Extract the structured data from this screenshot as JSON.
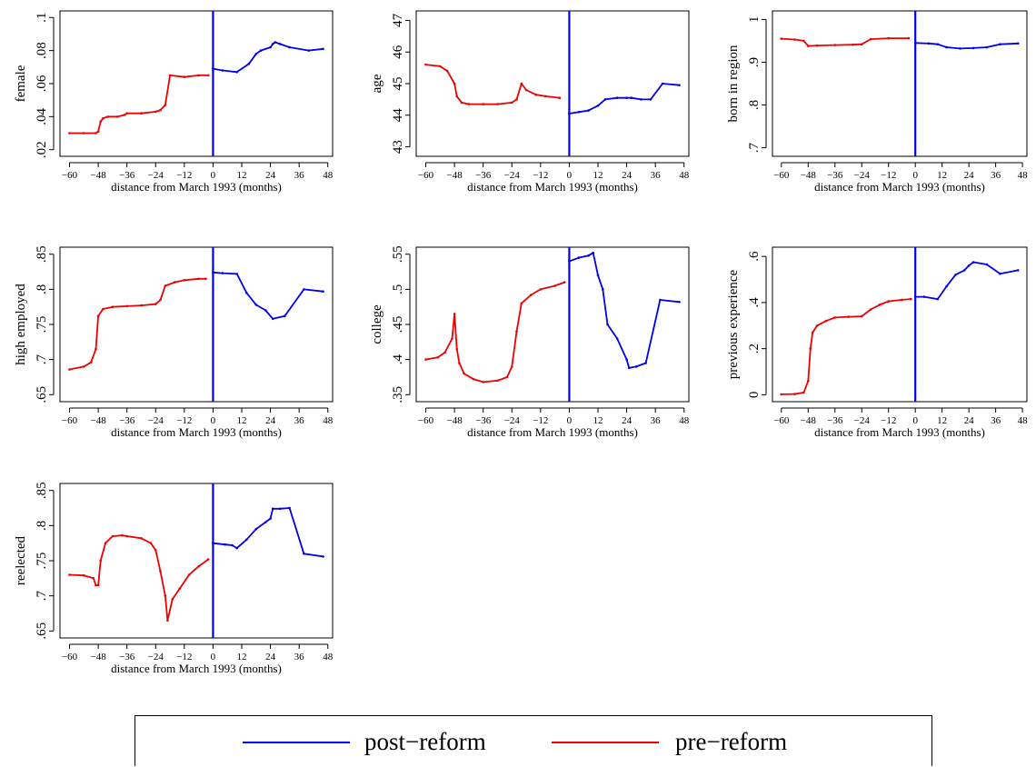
{
  "colors": {
    "post": "#0000EE",
    "pre": "#EE0000",
    "cutoff": "#0000EE",
    "axis": "#000000"
  },
  "legend": {
    "post_label": "post−reform",
    "pre_label": "pre−reform"
  },
  "chart_data": [
    {
      "type": "line",
      "ylabel": "female",
      "xlabel": "distance from March 1993 (months)",
      "xlim": [
        -64,
        50
      ],
      "ylim": [
        0.016,
        0.104
      ],
      "xticks": [
        -60,
        -48,
        -36,
        -24,
        -12,
        0,
        12,
        24,
        36,
        48
      ],
      "yticks": [
        0.02,
        0.04,
        0.06,
        0.08,
        0.1
      ],
      "yticklabels": [
        ".02",
        ".04",
        ".06",
        ".08",
        ".1"
      ],
      "cutoff_x": 0,
      "series": [
        {
          "key": "pre",
          "points": [
            [
              -60,
              0.03
            ],
            [
              -54,
              0.03
            ],
            [
              -49,
              0.03
            ],
            [
              -48,
              0.031
            ],
            [
              -47,
              0.037
            ],
            [
              -46,
              0.039
            ],
            [
              -44,
              0.04
            ],
            [
              -40,
              0.04
            ],
            [
              -37,
              0.041
            ],
            [
              -36,
              0.042
            ],
            [
              -30,
              0.042
            ],
            [
              -24,
              0.043
            ],
            [
              -22,
              0.044
            ],
            [
              -20,
              0.047
            ],
            [
              -18,
              0.065
            ],
            [
              -12,
              0.064
            ],
            [
              -6,
              0.065
            ],
            [
              -2,
              0.065
            ]
          ]
        },
        {
          "key": "post",
          "points": [
            [
              0,
              0.069
            ],
            [
              4,
              0.068
            ],
            [
              10,
              0.067
            ],
            [
              15,
              0.072
            ],
            [
              18,
              0.078
            ],
            [
              20,
              0.08
            ],
            [
              24,
              0.082
            ],
            [
              25,
              0.084
            ],
            [
              26,
              0.085
            ],
            [
              28,
              0.084
            ],
            [
              32,
              0.082
            ],
            [
              40,
              0.08
            ],
            [
              46,
              0.081
            ]
          ]
        }
      ]
    },
    {
      "type": "line",
      "ylabel": "age",
      "xlabel": "distance from March 1993 (months)",
      "xlim": [
        -64,
        50
      ],
      "ylim": [
        42.7,
        47.3
      ],
      "xticks": [
        -60,
        -48,
        -36,
        -24,
        -12,
        0,
        12,
        24,
        36,
        48
      ],
      "yticks": [
        43,
        44,
        45,
        46,
        47
      ],
      "yticklabels": [
        "43",
        "44",
        "45",
        "46",
        "47"
      ],
      "cutoff_x": 0,
      "series": [
        {
          "key": "pre",
          "points": [
            [
              -60,
              45.6
            ],
            [
              -54,
              45.55
            ],
            [
              -51,
              45.4
            ],
            [
              -48,
              45.0
            ],
            [
              -47,
              44.6
            ],
            [
              -45,
              44.4
            ],
            [
              -42,
              44.35
            ],
            [
              -36,
              44.35
            ],
            [
              -30,
              44.35
            ],
            [
              -24,
              44.4
            ],
            [
              -22,
              44.5
            ],
            [
              -20,
              45.0
            ],
            [
              -18,
              44.8
            ],
            [
              -14,
              44.65
            ],
            [
              -10,
              44.6
            ],
            [
              -4,
              44.55
            ]
          ]
        },
        {
          "key": "post",
          "points": [
            [
              0,
              44.05
            ],
            [
              4,
              44.1
            ],
            [
              8,
              44.15
            ],
            [
              12,
              44.3
            ],
            [
              15,
              44.5
            ],
            [
              20,
              44.55
            ],
            [
              24,
              44.55
            ],
            [
              26,
              44.55
            ],
            [
              30,
              44.5
            ],
            [
              34,
              44.5
            ],
            [
              39,
              45.0
            ],
            [
              46,
              44.95
            ]
          ]
        }
      ]
    },
    {
      "type": "line",
      "ylabel": "born in region",
      "xlabel": "distance from March 1993 (months)",
      "xlim": [
        -64,
        50
      ],
      "ylim": [
        0.68,
        1.02
      ],
      "xticks": [
        -60,
        -48,
        -36,
        -24,
        -12,
        0,
        12,
        24,
        36,
        48
      ],
      "yticks": [
        0.7,
        0.8,
        0.9,
        1.0
      ],
      "yticklabels": [
        ".7",
        ".8",
        ".9",
        "1"
      ],
      "cutoff_x": 0,
      "series": [
        {
          "key": "pre",
          "points": [
            [
              -60,
              0.955
            ],
            [
              -54,
              0.953
            ],
            [
              -50,
              0.95
            ],
            [
              -48,
              0.938
            ],
            [
              -44,
              0.939
            ],
            [
              -36,
              0.94
            ],
            [
              -28,
              0.941
            ],
            [
              -24,
              0.942
            ],
            [
              -20,
              0.954
            ],
            [
              -12,
              0.956
            ],
            [
              -3,
              0.956
            ]
          ]
        },
        {
          "key": "post",
          "points": [
            [
              0,
              0.945
            ],
            [
              6,
              0.944
            ],
            [
              10,
              0.942
            ],
            [
              14,
              0.935
            ],
            [
              20,
              0.932
            ],
            [
              26,
              0.933
            ],
            [
              32,
              0.935
            ],
            [
              38,
              0.942
            ],
            [
              46,
              0.944
            ]
          ]
        }
      ]
    },
    {
      "type": "line",
      "ylabel": "high employed",
      "xlabel": "distance from March 1993 (months)",
      "xlim": [
        -64,
        50
      ],
      "ylim": [
        0.64,
        0.86
      ],
      "xticks": [
        -60,
        -48,
        -36,
        -24,
        -12,
        0,
        12,
        24,
        36,
        48
      ],
      "yticks": [
        0.65,
        0.7,
        0.75,
        0.8,
        0.85
      ],
      "yticklabels": [
        ".65",
        ".7",
        ".75",
        ".8",
        ".85"
      ],
      "cutoff_x": 0,
      "series": [
        {
          "key": "pre",
          "points": [
            [
              -60,
              0.686
            ],
            [
              -54,
              0.69
            ],
            [
              -51,
              0.696
            ],
            [
              -49,
              0.715
            ],
            [
              -48,
              0.762
            ],
            [
              -46,
              0.772
            ],
            [
              -42,
              0.775
            ],
            [
              -36,
              0.776
            ],
            [
              -30,
              0.777
            ],
            [
              -24,
              0.779
            ],
            [
              -22,
              0.785
            ],
            [
              -20,
              0.805
            ],
            [
              -16,
              0.81
            ],
            [
              -12,
              0.813
            ],
            [
              -6,
              0.815
            ],
            [
              -3,
              0.815
            ]
          ]
        },
        {
          "key": "post",
          "points": [
            [
              0,
              0.824
            ],
            [
              4,
              0.823
            ],
            [
              10,
              0.822
            ],
            [
              14,
              0.795
            ],
            [
              18,
              0.778
            ],
            [
              22,
              0.77
            ],
            [
              25,
              0.758
            ],
            [
              30,
              0.762
            ],
            [
              38,
              0.8
            ],
            [
              46,
              0.797
            ]
          ]
        }
      ]
    },
    {
      "type": "line",
      "ylabel": "college",
      "xlabel": "distance from March 1993 (months)",
      "xlim": [
        -64,
        50
      ],
      "ylim": [
        0.34,
        0.56
      ],
      "xticks": [
        -60,
        -48,
        -36,
        -24,
        -12,
        0,
        12,
        24,
        36,
        48
      ],
      "yticks": [
        0.35,
        0.4,
        0.45,
        0.5,
        0.55
      ],
      "yticklabels": [
        ".35",
        ".4",
        ".45",
        ".5",
        ".55"
      ],
      "cutoff_x": 0,
      "series": [
        {
          "key": "pre",
          "points": [
            [
              -60,
              0.4
            ],
            [
              -55,
              0.403
            ],
            [
              -52,
              0.41
            ],
            [
              -49,
              0.43
            ],
            [
              -48,
              0.465
            ],
            [
              -47,
              0.415
            ],
            [
              -46,
              0.395
            ],
            [
              -44,
              0.38
            ],
            [
              -40,
              0.372
            ],
            [
              -36,
              0.368
            ],
            [
              -30,
              0.37
            ],
            [
              -26,
              0.375
            ],
            [
              -24,
              0.39
            ],
            [
              -22,
              0.44
            ],
            [
              -20,
              0.48
            ],
            [
              -16,
              0.492
            ],
            [
              -12,
              0.5
            ],
            [
              -6,
              0.505
            ],
            [
              -2,
              0.51
            ]
          ]
        },
        {
          "key": "post",
          "points": [
            [
              0,
              0.54
            ],
            [
              4,
              0.545
            ],
            [
              8,
              0.548
            ],
            [
              10,
              0.552
            ],
            [
              12,
              0.52
            ],
            [
              14,
              0.5
            ],
            [
              16,
              0.45
            ],
            [
              20,
              0.43
            ],
            [
              24,
              0.4
            ],
            [
              25,
              0.388
            ],
            [
              28,
              0.39
            ],
            [
              32,
              0.395
            ],
            [
              38,
              0.485
            ],
            [
              46,
              0.482
            ]
          ]
        }
      ]
    },
    {
      "type": "line",
      "ylabel": "previous experience",
      "xlabel": "distance from March 1993 (months)",
      "xlim": [
        -64,
        50
      ],
      "ylim": [
        -0.03,
        0.64
      ],
      "xticks": [
        -60,
        -48,
        -36,
        -24,
        -12,
        0,
        12,
        24,
        36,
        48
      ],
      "yticks": [
        0,
        0.2,
        0.4,
        0.6
      ],
      "yticklabels": [
        "0",
        ".2",
        ".4",
        ".6"
      ],
      "cutoff_x": 0,
      "series": [
        {
          "key": "pre",
          "points": [
            [
              -60,
              0.002
            ],
            [
              -54,
              0.003
            ],
            [
              -50,
              0.01
            ],
            [
              -48,
              0.06
            ],
            [
              -47,
              0.2
            ],
            [
              -46,
              0.27
            ],
            [
              -44,
              0.3
            ],
            [
              -40,
              0.32
            ],
            [
              -36,
              0.335
            ],
            [
              -30,
              0.338
            ],
            [
              -24,
              0.34
            ],
            [
              -20,
              0.37
            ],
            [
              -16,
              0.39
            ],
            [
              -12,
              0.405
            ],
            [
              -6,
              0.412
            ],
            [
              -2,
              0.415
            ]
          ]
        },
        {
          "key": "post",
          "points": [
            [
              0,
              0.425
            ],
            [
              4,
              0.425
            ],
            [
              10,
              0.415
            ],
            [
              14,
              0.47
            ],
            [
              18,
              0.52
            ],
            [
              22,
              0.54
            ],
            [
              24,
              0.56
            ],
            [
              26,
              0.575
            ],
            [
              32,
              0.565
            ],
            [
              38,
              0.525
            ],
            [
              46,
              0.54
            ]
          ]
        }
      ]
    },
    {
      "type": "line",
      "ylabel": "reelected",
      "xlabel": "distance from March 1993 (months)",
      "xlim": [
        -64,
        50
      ],
      "ylim": [
        0.64,
        0.86
      ],
      "xticks": [
        -60,
        -48,
        -36,
        -24,
        -12,
        0,
        12,
        24,
        36,
        48
      ],
      "yticks": [
        0.65,
        0.7,
        0.75,
        0.8,
        0.85
      ],
      "yticklabels": [
        ".65",
        ".7",
        ".75",
        ".8",
        ".85"
      ],
      "cutoff_x": 0,
      "series": [
        {
          "key": "pre",
          "points": [
            [
              -60,
              0.73
            ],
            [
              -54,
              0.729
            ],
            [
              -50,
              0.725
            ],
            [
              -49,
              0.715
            ],
            [
              -48,
              0.715
            ],
            [
              -47,
              0.75
            ],
            [
              -45,
              0.775
            ],
            [
              -42,
              0.785
            ],
            [
              -38,
              0.786
            ],
            [
              -36,
              0.785
            ],
            [
              -30,
              0.782
            ],
            [
              -26,
              0.775
            ],
            [
              -24,
              0.765
            ],
            [
              -22,
              0.735
            ],
            [
              -20,
              0.7
            ],
            [
              -19,
              0.665
            ],
            [
              -17,
              0.695
            ],
            [
              -14,
              0.71
            ],
            [
              -10,
              0.73
            ],
            [
              -6,
              0.742
            ],
            [
              -2,
              0.752
            ]
          ]
        },
        {
          "key": "post",
          "points": [
            [
              0,
              0.775
            ],
            [
              5,
              0.773
            ],
            [
              8,
              0.772
            ],
            [
              10,
              0.768
            ],
            [
              14,
              0.78
            ],
            [
              18,
              0.795
            ],
            [
              22,
              0.805
            ],
            [
              24,
              0.81
            ],
            [
              25,
              0.824
            ],
            [
              28,
              0.824
            ],
            [
              32,
              0.825
            ],
            [
              38,
              0.76
            ],
            [
              46,
              0.756
            ]
          ]
        }
      ]
    }
  ]
}
